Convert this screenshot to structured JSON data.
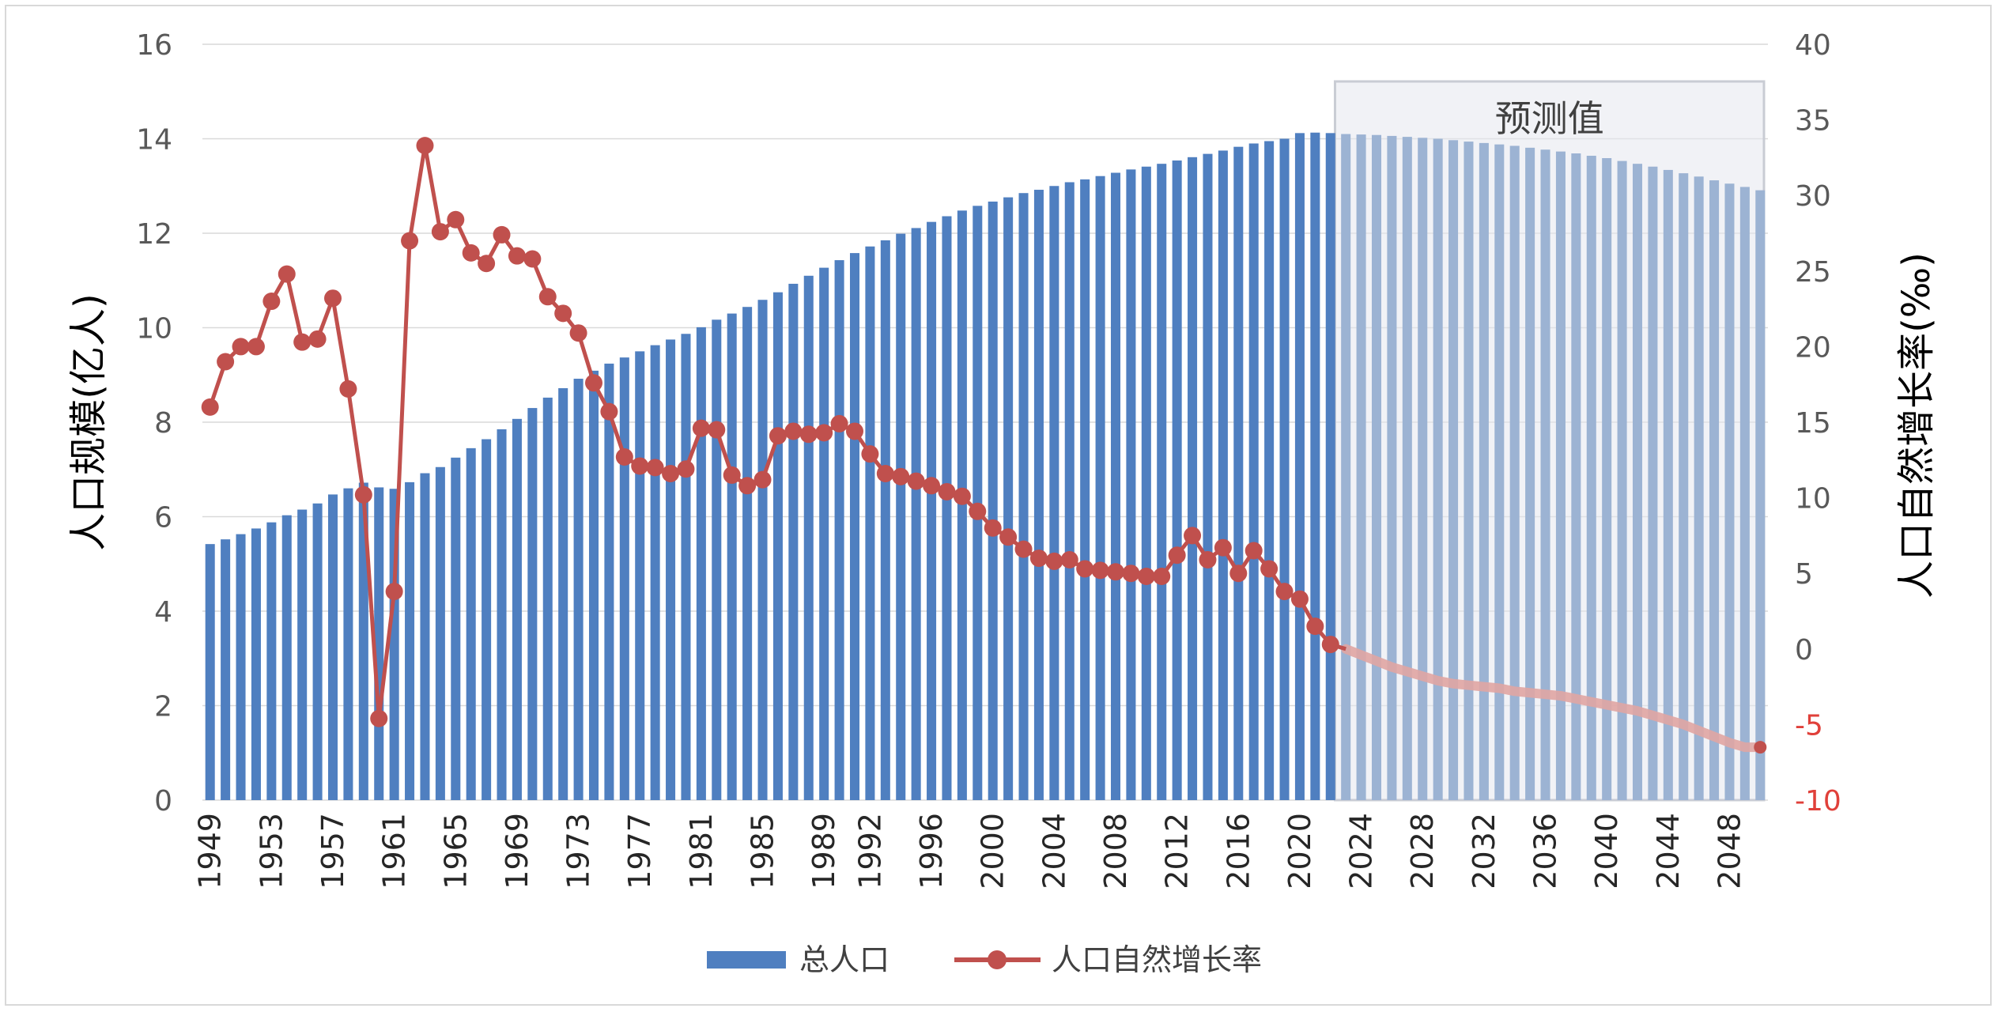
{
  "chart_data": {
    "type": "bar+line",
    "forecast_label": "预测值",
    "y_left_label": "人口规模(亿人)",
    "y_right_label": "人口自然增长率(‰)",
    "y_left_ticks": [
      "0",
      "2",
      "4",
      "6",
      "8",
      "10",
      "12",
      "14",
      "16"
    ],
    "y_right_ticks": [
      "-10",
      "-5",
      "0",
      "5",
      "10",
      "15",
      "20",
      "25",
      "30",
      "35",
      "40"
    ],
    "ylim_left": [
      0,
      16
    ],
    "ylim_right": [
      -10,
      40
    ],
    "x_tick_labels": [
      "1949",
      "1953",
      "1957",
      "1961",
      "1965",
      "1969",
      "1973",
      "1977",
      "1981",
      "1985",
      "1989",
      "1992",
      "1996",
      "2000",
      "2004",
      "2008",
      "2012",
      "2016",
      "2020",
      "2024",
      "2028",
      "2032",
      "2036",
      "2040",
      "2044",
      "2048"
    ],
    "x_years": [
      1949,
      1950,
      1951,
      1952,
      1953,
      1954,
      1955,
      1956,
      1957,
      1958,
      1959,
      1960,
      1961,
      1962,
      1963,
      1964,
      1965,
      1966,
      1967,
      1968,
      1969,
      1970,
      1971,
      1972,
      1973,
      1974,
      1975,
      1976,
      1977,
      1978,
      1979,
      1980,
      1981,
      1982,
      1983,
      1984,
      1985,
      1986,
      1987,
      1988,
      1989,
      1990,
      1991,
      1992,
      1993,
      1994,
      1995,
      1996,
      1997,
      1998,
      1999,
      2000,
      2001,
      2002,
      2003,
      2004,
      2005,
      2006,
      2007,
      2008,
      2009,
      2010,
      2011,
      2012,
      2013,
      2014,
      2015,
      2016,
      2017,
      2018,
      2019,
      2020,
      2021,
      2022,
      2023,
      2024,
      2025,
      2026,
      2027,
      2028,
      2029,
      2030,
      2031,
      2032,
      2033,
      2034,
      2035,
      2036,
      2037,
      2038,
      2039,
      2040,
      2041,
      2042,
      2043,
      2044,
      2045,
      2046,
      2047,
      2048,
      2049,
      2050
    ],
    "forecast_start_year": 2023,
    "series": [
      {
        "name": "总人口",
        "type": "bar",
        "color": "#4f7fc0",
        "forecast_color": "#9cb3d3",
        "axis": "left",
        "values": [
          5.42,
          5.52,
          5.63,
          5.75,
          5.88,
          6.03,
          6.15,
          6.28,
          6.47,
          6.6,
          6.72,
          6.62,
          6.59,
          6.73,
          6.92,
          7.05,
          7.25,
          7.45,
          7.64,
          7.85,
          8.07,
          8.3,
          8.52,
          8.72,
          8.92,
          9.09,
          9.24,
          9.37,
          9.5,
          9.63,
          9.75,
          9.87,
          10.01,
          10.17,
          10.3,
          10.44,
          10.59,
          10.75,
          10.93,
          11.1,
          11.27,
          11.43,
          11.58,
          11.72,
          11.85,
          11.99,
          12.11,
          12.24,
          12.36,
          12.48,
          12.58,
          12.67,
          12.76,
          12.85,
          12.92,
          13.0,
          13.08,
          13.14,
          13.21,
          13.28,
          13.35,
          13.41,
          13.47,
          13.54,
          13.61,
          13.68,
          13.75,
          13.83,
          13.9,
          13.95,
          14.0,
          14.12,
          14.13,
          14.12,
          14.1,
          14.09,
          14.08,
          14.06,
          14.04,
          14.02,
          14.0,
          13.97,
          13.94,
          13.91,
          13.88,
          13.85,
          13.81,
          13.77,
          13.73,
          13.69,
          13.64,
          13.59,
          13.53,
          13.47,
          13.41,
          13.34,
          13.27,
          13.2,
          13.12,
          13.05,
          12.98,
          12.91
        ]
      },
      {
        "name": "人口自然增长率",
        "type": "line",
        "color": "#c0504d",
        "forecast_color": "#e0a5a3",
        "axis": "right",
        "values": [
          16.0,
          19.0,
          20.0,
          20.0,
          23.0,
          24.8,
          20.3,
          20.5,
          23.2,
          17.2,
          10.2,
          -4.6,
          3.8,
          27.0,
          33.3,
          27.6,
          28.4,
          26.2,
          25.5,
          27.4,
          26.0,
          25.8,
          23.3,
          22.2,
          20.9,
          17.6,
          15.7,
          12.7,
          12.1,
          12.0,
          11.6,
          11.9,
          14.6,
          14.5,
          11.5,
          10.8,
          11.2,
          14.1,
          14.4,
          14.2,
          14.3,
          14.9,
          14.4,
          12.9,
          11.6,
          11.4,
          11.1,
          10.8,
          10.4,
          10.1,
          9.1,
          8.0,
          7.4,
          6.6,
          6.0,
          5.8,
          5.9,
          5.3,
          5.2,
          5.1,
          5.0,
          4.8,
          4.8,
          6.2,
          7.5,
          5.9,
          6.7,
          5.0,
          6.5,
          5.3,
          3.8,
          3.3,
          1.5,
          0.3,
          0.0,
          -0.4,
          -0.8,
          -1.2,
          -1.5,
          -1.8,
          -2.1,
          -2.3,
          -2.4,
          -2.5,
          -2.6,
          -2.8,
          -2.9,
          -3.0,
          -3.1,
          -3.3,
          -3.5,
          -3.7,
          -3.9,
          -4.1,
          -4.4,
          -4.7,
          -5.0,
          -5.4,
          -5.8,
          -6.2,
          -6.5,
          -6.5
        ]
      }
    ],
    "legend_position": "bottom"
  }
}
